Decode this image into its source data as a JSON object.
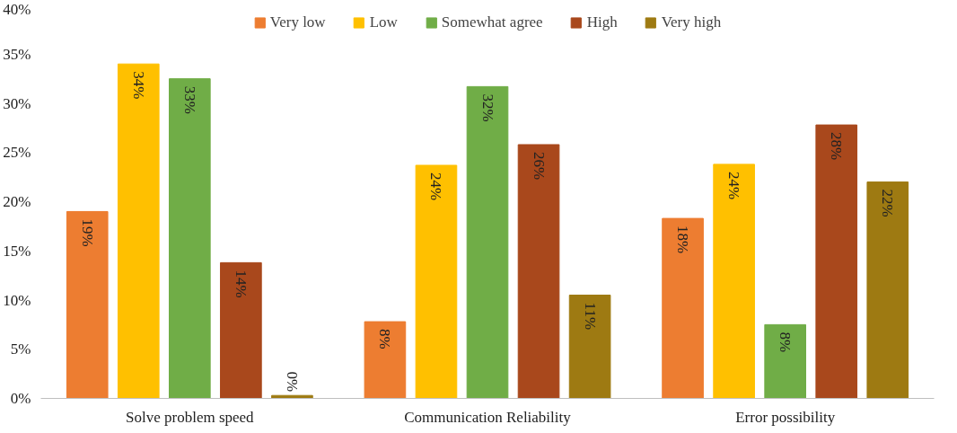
{
  "chart_data": {
    "type": "bar",
    "categories": [
      "Solve problem speed",
      "Communication Reliability",
      "Error possibility"
    ],
    "series": [
      {
        "name": "Very low",
        "color": "#ed7d31",
        "values": [
          19,
          7.8,
          18.3
        ],
        "value_labels": [
          "19%",
          "8%",
          "18%"
        ]
      },
      {
        "name": "Low",
        "color": "#ffc000",
        "values": [
          34,
          23.7,
          23.8
        ],
        "value_labels": [
          "34%",
          "24%",
          "24%"
        ]
      },
      {
        "name": "Somewhat agree",
        "color": "#70ad47",
        "values": [
          32.5,
          31.7,
          7.5
        ],
        "value_labels": [
          "33%",
          "32%",
          "8%"
        ]
      },
      {
        "name": "High",
        "color": "#a9481c",
        "values": [
          13.8,
          25.8,
          27.8
        ],
        "value_labels": [
          "14%",
          "26%",
          "28%"
        ]
      },
      {
        "name": "Very high",
        "color": "#9e7a12",
        "values": [
          0.3,
          10.5,
          22
        ],
        "value_labels": [
          "0%",
          "11%",
          "22%"
        ]
      }
    ],
    "ylim": [
      0,
      40
    ],
    "yticks": [
      {
        "value": 0,
        "label": "0%"
      },
      {
        "value": 5,
        "label": "5%"
      },
      {
        "value": 10,
        "label": "10%"
      },
      {
        "value": 15,
        "label": "15%"
      },
      {
        "value": 20,
        "label": "20%"
      },
      {
        "value": 25,
        "label": "25%"
      },
      {
        "value": 30,
        "label": "30%"
      },
      {
        "value": 35,
        "label": "35%"
      },
      {
        "value": 40,
        "label": "40%"
      }
    ],
    "grid": false,
    "legend": "top"
  }
}
